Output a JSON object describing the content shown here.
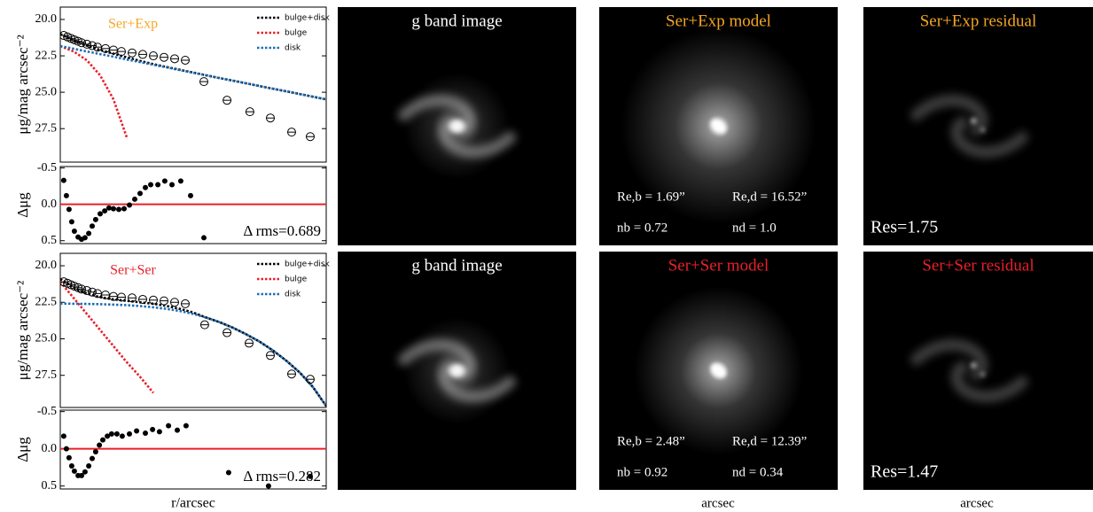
{
  "chart_data": [
    {
      "type": "line",
      "title": "Ser+Exp",
      "title_color": "#f5a623",
      "y_label": "μg/mag arcsec⁻²",
      "x": [
        0,
        5,
        10,
        15,
        20,
        25,
        30,
        35,
        40,
        45,
        50,
        55,
        60,
        65,
        70,
        75,
        80,
        85,
        90,
        95,
        100
      ],
      "xlim": [
        0,
        100
      ],
      "ylim": [
        19.15,
        29.8
      ],
      "y_inverted": true,
      "yticks": [
        {
          "value": 20,
          "label": "20.0"
        },
        22.5,
        {
          "value": 25,
          "label": "25.0"
        },
        27.5
      ],
      "legend": "upper right",
      "series": [
        {
          "name": "bulge+disk",
          "color": "#000000",
          "values": [
            21.0,
            21.45,
            21.8,
            22.1,
            22.35,
            22.6,
            22.85,
            23.07,
            23.27,
            23.46,
            23.65,
            23.84,
            24.03,
            24.21,
            24.39,
            24.58,
            24.76,
            24.94,
            25.12,
            25.31,
            25.49
          ]
        },
        {
          "name": "bulge",
          "color": "#e8202a",
          "values": [
            21.83,
            22.2,
            22.8,
            23.84,
            25.49,
            28.1,
            null,
            null,
            null,
            null,
            null,
            null,
            null,
            null,
            null,
            null,
            null,
            null,
            null,
            null,
            null
          ]
        },
        {
          "name": "disk",
          "color": "#1f6db5",
          "values": [
            21.83,
            22.01,
            22.2,
            22.38,
            22.56,
            22.75,
            22.93,
            23.11,
            23.29,
            23.48,
            23.66,
            23.84,
            24.03,
            24.21,
            24.39,
            24.58,
            24.76,
            24.94,
            25.12,
            25.31,
            25.49
          ]
        }
      ],
      "points": {
        "color": "#000000",
        "x": [
          1.3,
          2.7,
          4,
          5.3,
          6.7,
          8,
          10,
          12,
          14,
          17,
          20,
          23,
          27,
          31,
          35,
          39,
          43,
          47,
          54,
          62.7,
          71.3,
          79,
          87,
          94
        ],
        "values": [
          21.1,
          21.2,
          21.3,
          21.4,
          21.5,
          21.6,
          21.7,
          21.8,
          21.9,
          22.0,
          22.1,
          22.2,
          22.3,
          22.4,
          22.5,
          22.6,
          22.7,
          22.8,
          24.27,
          25.55,
          26.34,
          26.77,
          27.74,
          28.05
        ]
      }
    },
    {
      "type": "scatter",
      "y_label": "Δμg",
      "color": "#000000",
      "x": [
        1.3,
        2.3,
        3.3,
        4.3,
        5.3,
        6.7,
        8,
        9.3,
        10.7,
        12,
        13.3,
        15,
        16.7,
        18.3,
        20,
        22,
        24,
        26,
        28,
        30,
        32,
        34,
        36.7,
        39.3,
        42,
        45.3,
        49,
        54
      ],
      "values": [
        -0.33,
        -0.12,
        0.07,
        0.24,
        0.37,
        0.45,
        0.48,
        0.46,
        0.4,
        0.3,
        0.21,
        0.13,
        0.09,
        0.05,
        0.06,
        0.07,
        0.06,
        0.01,
        -0.07,
        -0.15,
        -0.23,
        -0.27,
        -0.27,
        -0.32,
        -0.27,
        -0.32,
        -0.12,
        0.46
      ],
      "xlim": [
        0,
        100
      ],
      "ylim": [
        -0.52,
        0.54
      ],
      "y_inverted": true,
      "yticks": [
        -0.5,
        {
          "value": 0,
          "label": "0.0"
        },
        0.5
      ],
      "reference_line": 0,
      "reference_color": "#e8202a",
      "annotation": "Δ rms=0.689"
    },
    {
      "type": "line",
      "title": "Ser+Ser",
      "title_color": "#e8202a",
      "y_label": "μg/mag arcsec⁻²",
      "x": [
        0,
        5,
        10,
        15,
        20,
        25,
        30,
        35,
        40,
        45,
        50,
        55,
        60,
        65,
        70,
        75,
        80,
        85,
        90,
        95,
        100
      ],
      "xlim": [
        0,
        100
      ],
      "ylim": [
        19.15,
        29.7
      ],
      "y_inverted": true,
      "yticks": [
        {
          "value": 20,
          "label": "20.0"
        },
        22.5,
        {
          "value": 25,
          "label": "25.0"
        },
        27.5
      ],
      "legend": "upper right",
      "series": [
        {
          "name": "bulge+disk",
          "color": "#000000",
          "values": [
            20.9,
            21.5,
            21.9,
            22.15,
            22.3,
            22.4,
            22.5,
            22.6,
            22.75,
            22.95,
            23.2,
            23.55,
            23.87,
            24.25,
            24.7,
            25.2,
            25.8,
            26.5,
            27.3,
            28.3,
            29.6
          ]
        },
        {
          "name": "bulge",
          "color": "#e8202a",
          "values": [
            21.1,
            22.2,
            23.3,
            24.4,
            25.5,
            26.6,
            27.6,
            28.7,
            null,
            null,
            null,
            null,
            null,
            null,
            null,
            null,
            null,
            null,
            null,
            null,
            null
          ]
        },
        {
          "name": "disk",
          "color": "#1f6db5",
          "values": [
            22.59,
            22.6,
            22.61,
            22.63,
            22.66,
            22.7,
            22.76,
            22.84,
            22.95,
            23.1,
            23.3,
            23.55,
            23.87,
            24.25,
            24.7,
            25.2,
            25.8,
            26.5,
            27.3,
            28.3,
            29.6
          ]
        }
      ],
      "points": {
        "color": "#000000",
        "x": [
          1.3,
          2.7,
          4,
          5.3,
          6.7,
          8,
          10,
          12,
          14,
          17,
          20,
          23,
          27,
          31,
          35,
          39,
          43,
          47,
          54.3,
          62.7,
          71,
          79,
          87,
          94
        ],
        "values": [
          21.1,
          21.2,
          21.3,
          21.4,
          21.5,
          21.6,
          21.7,
          21.8,
          21.9,
          22.0,
          22.1,
          22.15,
          22.2,
          22.3,
          22.35,
          22.4,
          22.5,
          22.6,
          24.04,
          24.58,
          25.3,
          26.14,
          27.41,
          27.77
        ]
      }
    },
    {
      "type": "scatter",
      "y_label": "Δμg",
      "x_label": "r/arcsec",
      "color": "#000000",
      "x": [
        1.3,
        2.3,
        3.3,
        4.3,
        5.3,
        6.7,
        8,
        9.3,
        10.7,
        12,
        13.3,
        14.7,
        16,
        17.7,
        19.3,
        21.3,
        23.3,
        26,
        28.7,
        32,
        34.7,
        37.3,
        40.7,
        44,
        47.3,
        63.3,
        78.3,
        94
      ],
      "values": [
        -0.17,
        0,
        0.12,
        0.23,
        0.3,
        0.36,
        0.36,
        0.31,
        0.23,
        0.13,
        0.04,
        -0.05,
        -0.12,
        -0.17,
        -0.2,
        -0.2,
        -0.17,
        -0.2,
        -0.24,
        -0.21,
        -0.26,
        -0.23,
        -0.31,
        -0.25,
        -0.31,
        0.32,
        0.5,
        0.37
      ],
      "xlim": [
        0,
        100
      ],
      "ylim": [
        -0.52,
        0.54
      ],
      "y_inverted": true,
      "yticks": [
        -0.5,
        {
          "value": 0,
          "label": "0.0"
        },
        0.5
      ],
      "reference_line": 0,
      "reference_color": "#e8202a",
      "annotation": "Δ rms=0.282"
    }
  ],
  "images": [
    {
      "title": "g band image",
      "title_color": "#ffffff"
    },
    {
      "title": "Ser+Exp model",
      "title_color": "#f5a623",
      "params": [
        "Re,b = 1.69”",
        "Re,d = 16.52”",
        "nb = 0.72",
        "nd = 1.0"
      ]
    },
    {
      "title": "Ser+Exp residual",
      "title_color": "#f5a623",
      "res": "Res=1.75"
    },
    {
      "title": "g band image",
      "title_color": "#ffffff"
    },
    {
      "title": "Ser+Ser model",
      "title_color": "#e8202a",
      "params": [
        "Re,b = 2.48”",
        "Re,d = 12.39”",
        "nb = 0.92",
        "nd = 0.34"
      ]
    },
    {
      "title": "Ser+Ser residual",
      "title_color": "#e8202a",
      "res": "Res=1.47"
    }
  ],
  "image_x_labels": [
    "arcsec",
    "arcsec"
  ]
}
